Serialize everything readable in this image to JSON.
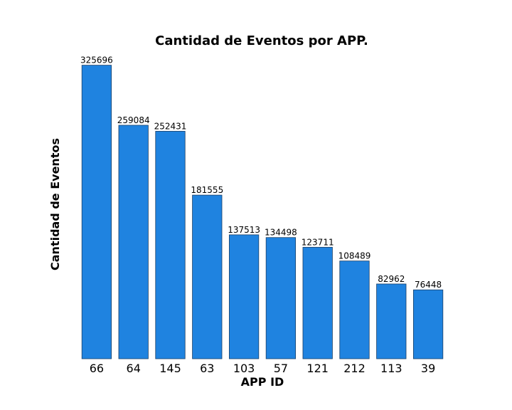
{
  "chart_data": {
    "type": "bar",
    "title": "Cantidad de Eventos por APP.",
    "xlabel": "APP ID",
    "ylabel": "Cantidad de Eventos",
    "categories": [
      "66",
      "64",
      "145",
      "63",
      "103",
      "57",
      "121",
      "212",
      "113",
      "39"
    ],
    "values": [
      325696,
      259084,
      252431,
      181555,
      137513,
      134498,
      123711,
      108489,
      82962,
      76448
    ],
    "ylim": [
      0,
      341981
    ],
    "bar_color": "#1f83e0",
    "grid": false,
    "legend": "none",
    "y_axis_visible": false,
    "show_value_labels": true
  }
}
